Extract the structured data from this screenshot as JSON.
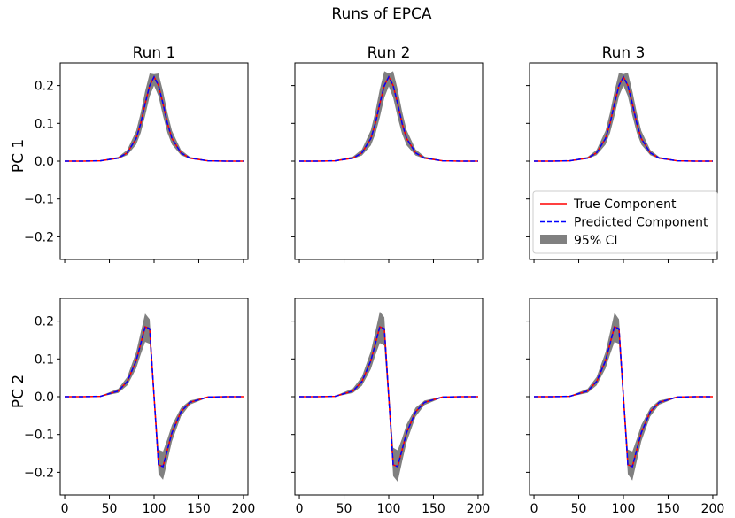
{
  "figure": {
    "title": "Runs of EPCA",
    "column_titles": [
      "Run 1",
      "Run 2",
      "Run 3"
    ],
    "row_labels": [
      "PC 1",
      "PC 2"
    ],
    "colors": {
      "true": "#ff0000",
      "predicted": "#0000ff",
      "ci": "#808080"
    }
  },
  "legend": {
    "position": "lower-right of Run 3 / PC 1 panel",
    "items": [
      {
        "label": "True Component",
        "style": "solid",
        "color": "#ff0000"
      },
      {
        "label": "Predicted Component",
        "style": "dashed",
        "color": "#0000ff"
      },
      {
        "label": "95% CI",
        "style": "patch",
        "color": "#808080"
      }
    ]
  },
  "chart_data": [
    {
      "type": "line",
      "panel": "Run 1 / PC 1",
      "x": [
        0,
        20,
        40,
        60,
        70,
        80,
        85,
        90,
        95,
        100,
        105,
        110,
        115,
        120,
        130,
        140,
        160,
        180,
        200
      ],
      "series": [
        {
          "name": "True Component",
          "values": [
            0,
            0,
            0.001,
            0.008,
            0.022,
            0.06,
            0.1,
            0.152,
            0.2,
            0.223,
            0.2,
            0.152,
            0.1,
            0.06,
            0.022,
            0.008,
            0.001,
            0,
            0
          ]
        },
        {
          "name": "Predicted Component",
          "values": [
            0,
            0,
            0.001,
            0.008,
            0.022,
            0.06,
            0.1,
            0.152,
            0.2,
            0.223,
            0.2,
            0.152,
            0.1,
            0.06,
            0.022,
            0.008,
            0.001,
            0,
            0
          ]
        },
        {
          "name": "95% CI lower",
          "values": [
            0,
            0,
            0.001,
            0.006,
            0.016,
            0.044,
            0.075,
            0.12,
            0.172,
            0.2,
            0.172,
            0.12,
            0.075,
            0.044,
            0.016,
            0.006,
            0.001,
            0,
            0
          ]
        },
        {
          "name": "95% CI upper",
          "values": [
            0,
            0,
            0.002,
            0.011,
            0.03,
            0.08,
            0.128,
            0.185,
            0.232,
            0.23,
            0.232,
            0.185,
            0.128,
            0.08,
            0.03,
            0.011,
            0.002,
            0,
            0
          ]
        }
      ],
      "xticks": [
        0,
        50,
        100,
        150,
        200
      ],
      "yticks": [
        -0.2,
        -0.1,
        0.0,
        0.1,
        0.2
      ],
      "xlim": [
        -5,
        205
      ],
      "ylim": [
        -0.26,
        0.26
      ]
    },
    {
      "type": "line",
      "panel": "Run 2 / PC 1",
      "x": [
        0,
        20,
        40,
        60,
        70,
        80,
        85,
        90,
        95,
        100,
        105,
        110,
        115,
        120,
        130,
        140,
        160,
        180,
        200
      ],
      "series": [
        {
          "name": "True Component",
          "values": [
            0,
            0,
            0.001,
            0.008,
            0.022,
            0.06,
            0.1,
            0.152,
            0.2,
            0.223,
            0.2,
            0.152,
            0.1,
            0.06,
            0.022,
            0.008,
            0.001,
            0,
            0
          ]
        },
        {
          "name": "Predicted Component",
          "values": [
            0,
            0,
            0.001,
            0.008,
            0.022,
            0.06,
            0.1,
            0.152,
            0.2,
            0.223,
            0.2,
            0.152,
            0.1,
            0.06,
            0.022,
            0.008,
            0.001,
            0,
            0
          ]
        },
        {
          "name": "95% CI lower",
          "values": [
            0,
            0,
            0.001,
            0.006,
            0.015,
            0.042,
            0.072,
            0.116,
            0.168,
            0.198,
            0.168,
            0.116,
            0.072,
            0.042,
            0.015,
            0.006,
            0.001,
            0,
            0
          ]
        },
        {
          "name": "95% CI upper",
          "values": [
            0,
            0,
            0.002,
            0.012,
            0.031,
            0.082,
            0.131,
            0.19,
            0.238,
            0.232,
            0.238,
            0.19,
            0.131,
            0.082,
            0.031,
            0.012,
            0.002,
            0,
            0
          ]
        }
      ],
      "xticks": [
        0,
        50,
        100,
        150,
        200
      ],
      "yticks": [
        -0.2,
        -0.1,
        0.0,
        0.1,
        0.2
      ],
      "xlim": [
        -5,
        205
      ],
      "ylim": [
        -0.26,
        0.26
      ]
    },
    {
      "type": "line",
      "panel": "Run 3 / PC 1",
      "x": [
        0,
        20,
        40,
        60,
        70,
        80,
        85,
        90,
        95,
        100,
        105,
        110,
        115,
        120,
        130,
        140,
        160,
        180,
        200
      ],
      "series": [
        {
          "name": "True Component",
          "values": [
            0,
            0,
            0.001,
            0.008,
            0.022,
            0.06,
            0.1,
            0.152,
            0.2,
            0.223,
            0.2,
            0.152,
            0.1,
            0.06,
            0.022,
            0.008,
            0.001,
            0,
            0
          ]
        },
        {
          "name": "Predicted Component",
          "values": [
            0,
            0,
            0.001,
            0.008,
            0.022,
            0.06,
            0.1,
            0.152,
            0.2,
            0.223,
            0.2,
            0.152,
            0.1,
            0.06,
            0.022,
            0.008,
            0.001,
            0,
            0
          ]
        },
        {
          "name": "95% CI lower",
          "values": [
            0,
            0,
            0.001,
            0.006,
            0.016,
            0.044,
            0.075,
            0.12,
            0.172,
            0.2,
            0.172,
            0.12,
            0.075,
            0.044,
            0.016,
            0.006,
            0.001,
            0,
            0
          ]
        },
        {
          "name": "95% CI upper",
          "values": [
            0,
            0,
            0.002,
            0.011,
            0.03,
            0.08,
            0.128,
            0.185,
            0.234,
            0.23,
            0.234,
            0.185,
            0.128,
            0.08,
            0.03,
            0.011,
            0.002,
            0,
            0
          ]
        }
      ],
      "xticks": [
        0,
        50,
        100,
        150,
        200
      ],
      "yticks": [
        -0.2,
        -0.1,
        0.0,
        0.1,
        0.2
      ],
      "xlim": [
        -5,
        205
      ],
      "ylim": [
        -0.26,
        0.26
      ]
    },
    {
      "type": "line",
      "panel": "Run 1 / PC 2",
      "x": [
        0,
        20,
        40,
        60,
        70,
        80,
        85,
        90,
        95,
        100,
        105,
        110,
        115,
        120,
        130,
        140,
        160,
        180,
        200
      ],
      "series": [
        {
          "name": "True Component",
          "values": [
            0,
            0,
            0.001,
            0.015,
            0.04,
            0.095,
            0.14,
            0.185,
            0.18,
            0.0,
            -0.18,
            -0.185,
            -0.14,
            -0.095,
            -0.04,
            -0.015,
            -0.001,
            0,
            0
          ]
        },
        {
          "name": "Predicted Component",
          "values": [
            0,
            0,
            0.001,
            0.015,
            0.04,
            0.095,
            0.14,
            0.185,
            0.18,
            0.0,
            -0.18,
            -0.185,
            -0.14,
            -0.095,
            -0.04,
            -0.015,
            -0.001,
            0,
            0
          ]
        },
        {
          "name": "95% CI lower",
          "values": [
            0,
            0,
            0.0,
            0.01,
            0.03,
            0.075,
            0.112,
            0.145,
            0.14,
            -0.02,
            -0.205,
            -0.22,
            -0.17,
            -0.118,
            -0.052,
            -0.021,
            -0.002,
            -0.001,
            0
          ]
        },
        {
          "name": "95% CI upper",
          "values": [
            0,
            0,
            0.002,
            0.021,
            0.052,
            0.118,
            0.17,
            0.22,
            0.205,
            0.02,
            -0.14,
            -0.145,
            -0.112,
            -0.075,
            -0.03,
            -0.01,
            0.0,
            0.001,
            0
          ]
        }
      ],
      "xticks": [
        0,
        50,
        100,
        150,
        200
      ],
      "yticks": [
        -0.2,
        -0.1,
        0.0,
        0.1,
        0.2
      ],
      "xlim": [
        -5,
        205
      ],
      "ylim": [
        -0.26,
        0.26
      ]
    },
    {
      "type": "line",
      "panel": "Run 2 / PC 2",
      "x": [
        0,
        20,
        40,
        60,
        70,
        80,
        85,
        90,
        95,
        100,
        105,
        110,
        115,
        120,
        130,
        140,
        160,
        180,
        200
      ],
      "series": [
        {
          "name": "True Component",
          "values": [
            0,
            0,
            0.001,
            0.015,
            0.04,
            0.095,
            0.14,
            0.185,
            0.18,
            0.0,
            -0.18,
            -0.185,
            -0.14,
            -0.095,
            -0.04,
            -0.015,
            -0.001,
            0,
            0
          ]
        },
        {
          "name": "Predicted Component",
          "values": [
            0,
            0,
            0.001,
            0.015,
            0.04,
            0.095,
            0.14,
            0.185,
            0.18,
            0.0,
            -0.18,
            -0.185,
            -0.14,
            -0.095,
            -0.04,
            -0.015,
            -0.001,
            0,
            0
          ]
        },
        {
          "name": "95% CI lower",
          "values": [
            0,
            0,
            0.0,
            0.01,
            0.029,
            0.073,
            0.11,
            0.142,
            0.135,
            -0.025,
            -0.21,
            -0.225,
            -0.172,
            -0.12,
            -0.053,
            -0.022,
            -0.002,
            -0.001,
            0
          ]
        },
        {
          "name": "95% CI upper",
          "values": [
            0,
            0,
            0.002,
            0.022,
            0.053,
            0.12,
            0.172,
            0.225,
            0.21,
            0.025,
            -0.135,
            -0.142,
            -0.11,
            -0.073,
            -0.029,
            -0.01,
            0.0,
            0.001,
            0
          ]
        }
      ],
      "xticks": [
        0,
        50,
        100,
        150,
        200
      ],
      "yticks": [
        -0.2,
        -0.1,
        0.0,
        0.1,
        0.2
      ],
      "xlim": [
        -5,
        205
      ],
      "ylim": [
        -0.26,
        0.26
      ]
    },
    {
      "type": "line",
      "panel": "Run 3 / PC 2",
      "x": [
        0,
        20,
        40,
        60,
        70,
        80,
        85,
        90,
        95,
        100,
        105,
        110,
        115,
        120,
        130,
        140,
        160,
        180,
        200
      ],
      "series": [
        {
          "name": "True Component",
          "values": [
            0,
            0,
            0.001,
            0.015,
            0.04,
            0.095,
            0.14,
            0.185,
            0.18,
            0.0,
            -0.18,
            -0.185,
            -0.14,
            -0.095,
            -0.04,
            -0.015,
            -0.001,
            0,
            0
          ]
        },
        {
          "name": "Predicted Component",
          "values": [
            0,
            0,
            0.001,
            0.015,
            0.04,
            0.095,
            0.14,
            0.185,
            0.18,
            0.0,
            -0.18,
            -0.185,
            -0.14,
            -0.095,
            -0.04,
            -0.015,
            -0.001,
            0,
            0
          ]
        },
        {
          "name": "95% CI lower",
          "values": [
            0,
            0,
            0.0,
            0.01,
            0.03,
            0.075,
            0.112,
            0.145,
            0.14,
            -0.02,
            -0.205,
            -0.222,
            -0.17,
            -0.118,
            -0.052,
            -0.021,
            -0.002,
            -0.001,
            0
          ]
        },
        {
          "name": "95% CI upper",
          "values": [
            0,
            0,
            0.002,
            0.021,
            0.052,
            0.118,
            0.17,
            0.222,
            0.205,
            0.02,
            -0.14,
            -0.145,
            -0.112,
            -0.075,
            -0.03,
            -0.01,
            0.0,
            0.001,
            0
          ]
        }
      ],
      "xticks": [
        0,
        50,
        100,
        150,
        200
      ],
      "yticks": [
        -0.2,
        -0.1,
        0.0,
        0.1,
        0.2
      ],
      "xlim": [
        -5,
        205
      ],
      "ylim": [
        -0.26,
        0.26
      ]
    }
  ]
}
